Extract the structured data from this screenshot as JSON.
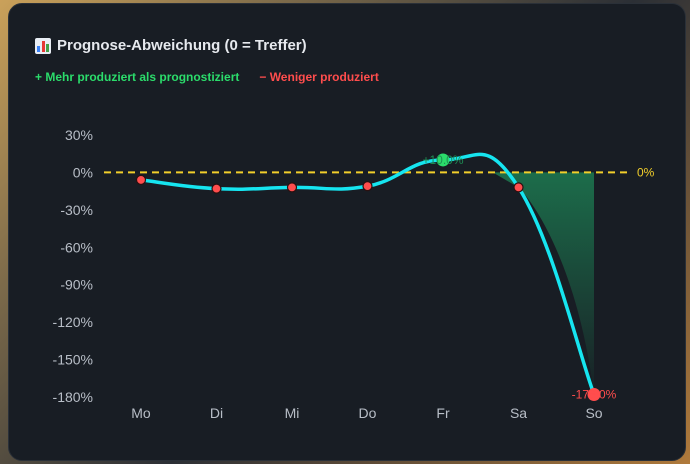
{
  "title": "Prognose-Abweichung (0 = Treffer)",
  "legend": {
    "positive": "+ Mehr produziert als prognostiziert",
    "negative": "− Weniger produziert"
  },
  "colors": {
    "line": "#16e5f0",
    "zero_line": "#f2cf2b",
    "positive": "#2bdc6b",
    "negative": "#ff4d4d",
    "axis_text": "#b8bec7"
  },
  "chart_data": {
    "type": "line",
    "title": "Prognose-Abweichung (0 = Treffer)",
    "categories": [
      "Mo",
      "Di",
      "Mi",
      "Do",
      "Fr",
      "Sa",
      "So"
    ],
    "series": [
      {
        "values": [
          -6,
          -13,
          -12,
          -11,
          10,
          -12,
          -178
        ]
      }
    ],
    "ylim": [
      -180,
      30
    ],
    "yticks": [
      30,
      0,
      -30,
      -60,
      -90,
      -120,
      -150,
      -180
    ],
    "ytick_labels": [
      "30%",
      "0%",
      "-30%",
      "-60%",
      "-90%",
      "-120%",
      "-150%",
      "-180%"
    ],
    "reference_line": {
      "value": 0,
      "label": "0%"
    },
    "data_labels": [
      {
        "category": "Fr",
        "text": "+10.0%"
      },
      {
        "category": "So",
        "text": "-178.0%"
      }
    ],
    "grid": false
  }
}
